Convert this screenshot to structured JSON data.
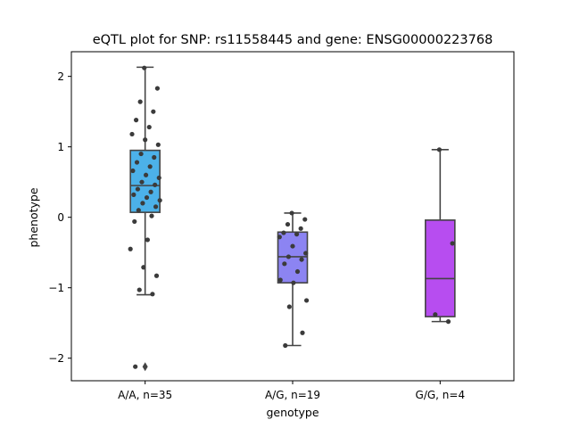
{
  "chart_data": {
    "type": "box",
    "title": "eQTL plot for SNP: rs11558445 and gene: ENSG00000223768",
    "xlabel": "genotype",
    "ylabel": "phenotype",
    "ylim": [
      -2.32,
      2.35
    ],
    "yticks": [
      -2,
      -1,
      0,
      1,
      2
    ],
    "ytick_labels": [
      "−2",
      "−1",
      "0",
      "1",
      "2"
    ],
    "categories": [
      "A/A, n=35",
      "A/G, n=19",
      "G/G, n=4"
    ],
    "colors": {
      "A/A": "#4cb1e9",
      "A/G": "#8c84f2",
      "G/G": "#b74df0",
      "box_edge": "#444444",
      "points": "#3b3b3b"
    },
    "boxes": [
      {
        "q1": 0.07,
        "median": 0.45,
        "q3": 0.95,
        "whisker_low": -1.1,
        "whisker_high": 2.13,
        "outliers": [
          -2.12
        ]
      },
      {
        "q1": -0.93,
        "median": -0.56,
        "q3": -0.21,
        "whisker_low": -1.82,
        "whisker_high": 0.06,
        "outliers": []
      },
      {
        "q1": -1.41,
        "median": -0.87,
        "q3": -0.04,
        "whisker_low": -1.48,
        "whisker_high": 0.96,
        "outliers": []
      }
    ],
    "points": [
      [
        2.12,
        1.83,
        1.64,
        1.5,
        1.38,
        1.28,
        1.18,
        1.1,
        1.03,
        0.9,
        0.85,
        0.78,
        0.72,
        0.66,
        0.6,
        0.56,
        0.5,
        0.46,
        0.4,
        0.36,
        0.32,
        0.28,
        0.24,
        0.2,
        0.15,
        0.1,
        0.02,
        -0.06,
        -0.32,
        -0.45,
        -0.71,
        -0.83,
        -1.03,
        -1.09,
        -2.12
      ],
      [
        0.06,
        -0.03,
        -0.1,
        -0.16,
        -0.22,
        -0.24,
        -0.28,
        -0.41,
        -0.51,
        -0.56,
        -0.6,
        -0.66,
        -0.77,
        -0.89,
        -0.93,
        -1.18,
        -1.27,
        -1.64,
        -1.82
      ],
      [
        0.96,
        -0.37,
        -1.38,
        -1.48
      ]
    ]
  }
}
